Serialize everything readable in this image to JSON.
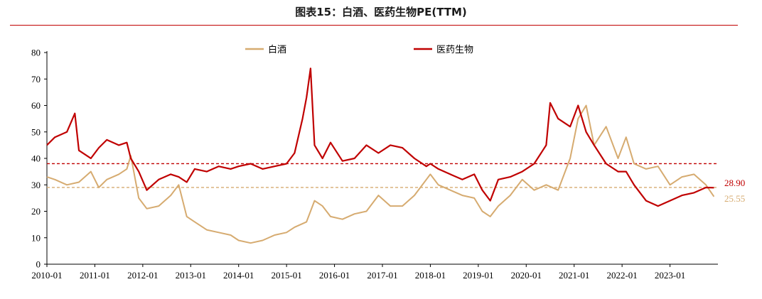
{
  "title": "图表15：白酒、医药生物PE(TTM)",
  "colors": {
    "baijiu": "#d6ab70",
    "pharma": "#c00000",
    "rule": "#c00000"
  },
  "chart_data": {
    "type": "line",
    "title": "图表15：白酒、医药生物PE(TTM)",
    "ylim": [
      0,
      80
    ],
    "yticks": [
      "0",
      "10",
      "20",
      "30",
      "40",
      "50",
      "60",
      "70",
      "80"
    ],
    "xticks": [
      "2010-01",
      "2011-01",
      "2012-01",
      "2013-01",
      "2014-01",
      "2015-01",
      "2016-01",
      "2017-01",
      "2018-01",
      "2019-01",
      "2020-01",
      "2021-01",
      "2022-01",
      "2023-01"
    ],
    "legend": [
      "白酒",
      "医药生物"
    ],
    "legend_position": "top",
    "reference_lines": [
      {
        "series": "医药生物",
        "value": 38,
        "style": "dashed"
      },
      {
        "series": "白酒",
        "value": 29,
        "style": "dashed"
      }
    ],
    "end_labels": {
      "pharma": "28.90",
      "baijiu": "25.55"
    },
    "series": [
      {
        "name": "白酒",
        "x": [
          "2010-01",
          "2010-03",
          "2010-06",
          "2010-09",
          "2010-12",
          "2011-02",
          "2011-04",
          "2011-07",
          "2011-09",
          "2011-10",
          "2011-12",
          "2012-02",
          "2012-05",
          "2012-08",
          "2012-10",
          "2012-12",
          "2013-02",
          "2013-05",
          "2013-08",
          "2013-11",
          "2014-01",
          "2014-04",
          "2014-07",
          "2014-10",
          "2015-01",
          "2015-03",
          "2015-06",
          "2015-08",
          "2015-10",
          "2015-12",
          "2016-03",
          "2016-06",
          "2016-09",
          "2016-12",
          "2017-03",
          "2017-06",
          "2017-09",
          "2017-12",
          "2018-01",
          "2018-03",
          "2018-06",
          "2018-09",
          "2018-12",
          "2019-02",
          "2019-04",
          "2019-06",
          "2019-09",
          "2019-12",
          "2020-03",
          "2020-06",
          "2020-09",
          "2020-12",
          "2021-02",
          "2021-04",
          "2021-06",
          "2021-09",
          "2021-12",
          "2022-02",
          "2022-04",
          "2022-07",
          "2022-10",
          "2023-01",
          "2023-04",
          "2023-07",
          "2023-10",
          "2023-12"
        ],
        "values": [
          33,
          32,
          30,
          31,
          35,
          29,
          32,
          34,
          36,
          41,
          25,
          21,
          22,
          26,
          30,
          18,
          16,
          13,
          12,
          11,
          9,
          8,
          9,
          11,
          12,
          14,
          16,
          24,
          22,
          18,
          17,
          19,
          20,
          26,
          22,
          22,
          26,
          32,
          34,
          30,
          28,
          26,
          25,
          20,
          18,
          22,
          26,
          32,
          28,
          30,
          28,
          40,
          55,
          60,
          45,
          52,
          40,
          48,
          38,
          36,
          37,
          30,
          33,
          34,
          30,
          25.55
        ]
      },
      {
        "name": "医药生物",
        "x": [
          "2010-01",
          "2010-03",
          "2010-06",
          "2010-08",
          "2010-09",
          "2010-12",
          "2011-02",
          "2011-04",
          "2011-07",
          "2011-09",
          "2011-10",
          "2011-12",
          "2012-02",
          "2012-05",
          "2012-08",
          "2012-10",
          "2012-12",
          "2013-02",
          "2013-05",
          "2013-08",
          "2013-11",
          "2014-01",
          "2014-04",
          "2014-07",
          "2014-10",
          "2015-01",
          "2015-03",
          "2015-05",
          "2015-06",
          "2015-07",
          "2015-08",
          "2015-10",
          "2015-12",
          "2016-03",
          "2016-06",
          "2016-09",
          "2016-12",
          "2017-03",
          "2017-06",
          "2017-09",
          "2017-12",
          "2018-01",
          "2018-03",
          "2018-06",
          "2018-09",
          "2018-12",
          "2019-02",
          "2019-04",
          "2019-06",
          "2019-09",
          "2019-12",
          "2020-03",
          "2020-06",
          "2020-07",
          "2020-09",
          "2020-12",
          "2021-02",
          "2021-04",
          "2021-06",
          "2021-09",
          "2021-12",
          "2022-02",
          "2022-04",
          "2022-07",
          "2022-10",
          "2023-01",
          "2023-04",
          "2023-07",
          "2023-10",
          "2023-12"
        ],
        "values": [
          45,
          48,
          50,
          57,
          43,
          40,
          44,
          47,
          45,
          46,
          40,
          35,
          28,
          32,
          34,
          33,
          31,
          36,
          35,
          37,
          36,
          37,
          38,
          36,
          37,
          38,
          42,
          55,
          63,
          74,
          45,
          40,
          46,
          39,
          40,
          45,
          42,
          45,
          44,
          40,
          37,
          38,
          36,
          34,
          32,
          34,
          28,
          24,
          32,
          33,
          35,
          38,
          45,
          61,
          55,
          52,
          60,
          50,
          45,
          38,
          35,
          35,
          30,
          24,
          22,
          24,
          26,
          27,
          29,
          28.9
        ]
      }
    ]
  }
}
